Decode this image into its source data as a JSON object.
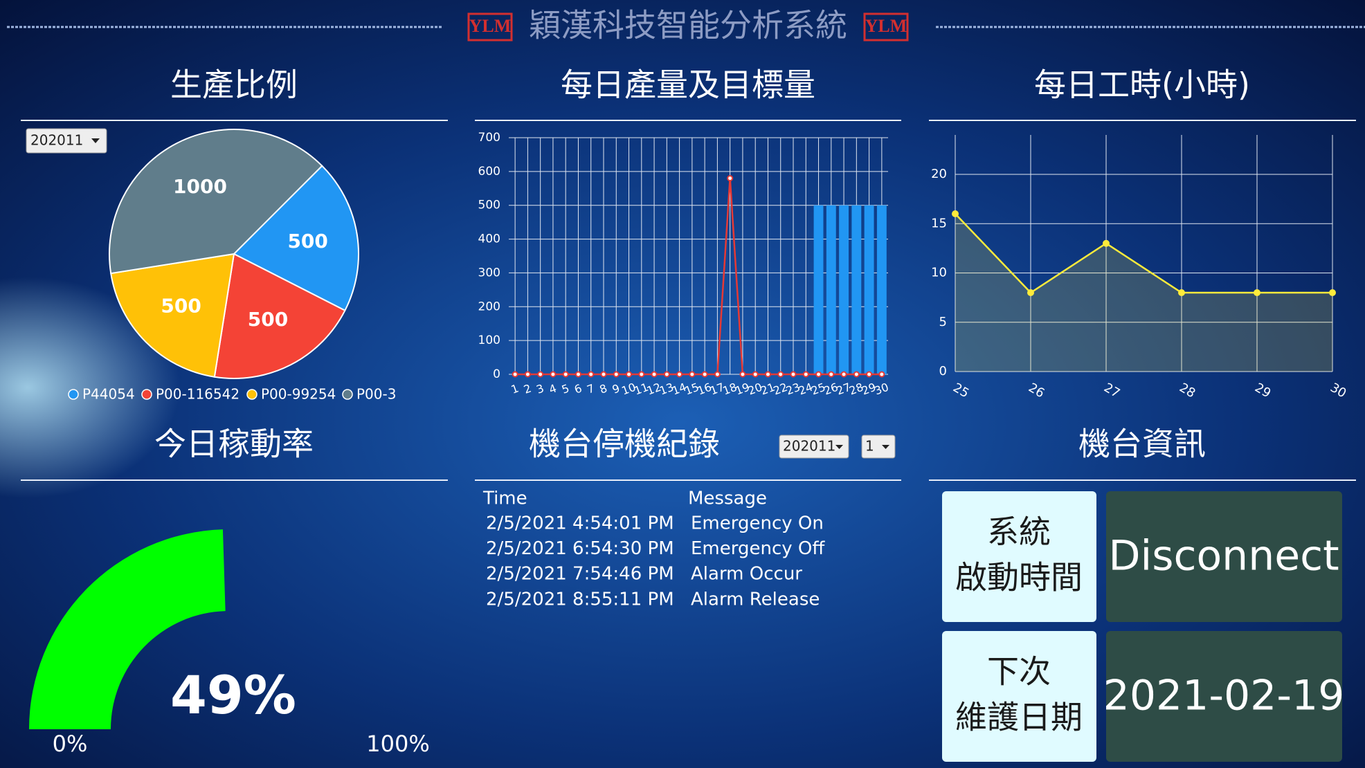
{
  "header": {
    "title": "穎漢科技智能分析系統",
    "logo": "YLM"
  },
  "chart_data": [
    {
      "type": "pie",
      "title": "生產比例",
      "select": "202011",
      "categories": [
        "P44054",
        "P00-116542",
        "P00-99254",
        "P00-3"
      ],
      "values": [
        500,
        500,
        500,
        1000
      ],
      "colors": [
        "#2196f3",
        "#f44336",
        "#ffc107",
        "#607d8b"
      ]
    },
    {
      "type": "combo",
      "title": "每日產量及目標量",
      "categories": [
        "1",
        "2",
        "3",
        "4",
        "5",
        "6",
        "7",
        "8",
        "9",
        "10",
        "11",
        "12",
        "13",
        "14",
        "15",
        "16",
        "17",
        "18",
        "19",
        "20",
        "21",
        "22",
        "23",
        "24",
        "25",
        "26",
        "27",
        "28",
        "29",
        "30"
      ],
      "series": [
        {
          "type": "bar",
          "color": "#2196f3",
          "values": [
            0,
            0,
            0,
            0,
            0,
            0,
            0,
            0,
            0,
            0,
            0,
            0,
            0,
            0,
            0,
            0,
            0,
            0,
            0,
            0,
            0,
            0,
            0,
            0,
            500,
            500,
            500,
            500,
            500,
            500
          ]
        },
        {
          "type": "line",
          "color": "#e53935",
          "values": [
            0,
            0,
            0,
            0,
            0,
            0,
            0,
            0,
            0,
            0,
            0,
            0,
            0,
            0,
            0,
            0,
            0,
            580,
            0,
            0,
            0,
            0,
            0,
            0,
            0,
            0,
            0,
            0,
            0,
            0
          ]
        }
      ],
      "ylim": [
        0,
        700
      ],
      "yticks": [
        0,
        100,
        200,
        300,
        400,
        500,
        600,
        700
      ],
      "grid": true
    },
    {
      "type": "line",
      "title": "每日工時(小時)",
      "color": "#ffeb3b",
      "x": [
        25,
        26,
        27,
        28,
        29,
        30
      ],
      "values": [
        16,
        8,
        13,
        8,
        8,
        8
      ],
      "xlim": [
        25,
        30
      ],
      "xticks": [
        25,
        26,
        27,
        28,
        29,
        30
      ],
      "ylim": [
        0,
        24
      ],
      "yticks": [
        0,
        5,
        10,
        15,
        20
      ],
      "grid": true
    },
    {
      "type": "gauge",
      "title": "今日稼動率",
      "value": 49,
      "value_label": "49%",
      "color": "#00ff00",
      "ylim": [
        0,
        100
      ],
      "yticks": [
        {
          "value": 0,
          "label": "0%"
        },
        {
          "value": 100,
          "label": "100%"
        }
      ]
    }
  ],
  "table": {
    "title": "機台停機紀錄",
    "selects": [
      "202011",
      "1"
    ],
    "columns": [
      "Time",
      "Message"
    ],
    "rows": [
      [
        "2/5/2021 4:54:01 PM",
        "Emergency On"
      ],
      [
        "2/5/2021 6:54:30 PM",
        "Emergency Off"
      ],
      [
        "2/5/2021 7:54:46 PM",
        "Alarm Occur"
      ],
      [
        "2/5/2021 8:55:11 PM",
        "Alarm Release"
      ]
    ]
  },
  "info": {
    "title": "機台資訊",
    "items": [
      {
        "label": [
          "系統",
          "啟動時間"
        ],
        "value": "Disconnect"
      },
      {
        "label": [
          "下次",
          "維護日期"
        ],
        "value": "2021-02-19"
      }
    ]
  }
}
